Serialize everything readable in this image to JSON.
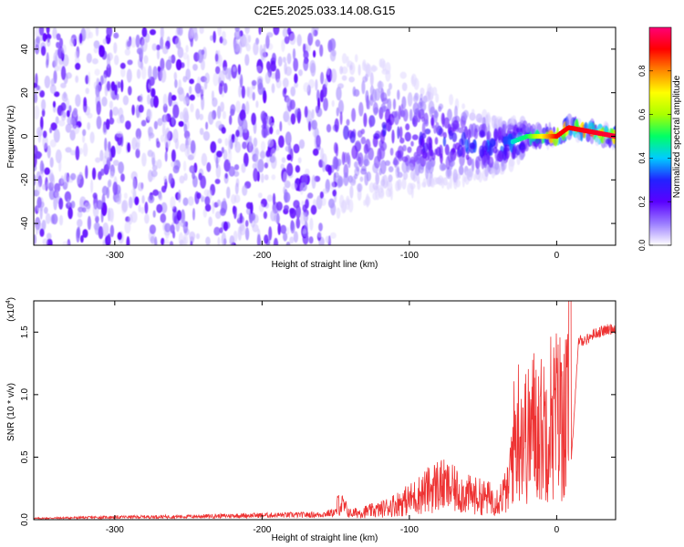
{
  "title": "C2E5.2025.033.14.08.G15",
  "chart_data": [
    {
      "type": "heatmap",
      "xlabel": "Height of straight line (km)",
      "ylabel": "Frequency (Hz)",
      "xlim": [
        -355,
        40
      ],
      "ylim": [
        -50,
        50
      ],
      "xticks": [
        -300,
        -200,
        -100,
        0
      ],
      "yticks": [
        -40,
        -20,
        0,
        20,
        40
      ],
      "colorbar": {
        "label": "Normalized spectral amplitude",
        "range": [
          0,
          1
        ],
        "ticks": [
          "0.0",
          "0.2",
          "0.4",
          "0.6",
          "0.8"
        ],
        "colormap": [
          "#ffffff",
          "#9a7cff",
          "#5a00ff",
          "#2222ff",
          "#00ccff",
          "#00ff66",
          "#aaff00",
          "#ffff00",
          "#ff8800",
          "#ff0000",
          "#ff0077"
        ]
      },
      "ridge": [
        {
          "x": -180,
          "f": 0,
          "amp": 0.2
        },
        {
          "x": -120,
          "f": 3,
          "amp": 0.25
        },
        {
          "x": -70,
          "f": -3,
          "amp": 0.3
        },
        {
          "x": -40,
          "f": -5,
          "amp": 0.35
        },
        {
          "x": -20,
          "f": 0,
          "amp": 0.5
        },
        {
          "x": 0,
          "f": 0,
          "amp": 0.9
        },
        {
          "x": 8,
          "f": 4,
          "amp": 0.9
        },
        {
          "x": 40,
          "f": 0,
          "amp": 0.95
        }
      ]
    },
    {
      "type": "line",
      "xlabel": "Height of straight line (km)",
      "ylabel": "SNR (10 * v/v)",
      "yscale_label": "(x10",
      "yscale_exp": "4",
      "xlim": [
        -355,
        40
      ],
      "ylim": [
        0,
        1.75
      ],
      "xticks": [
        -300,
        -200,
        -100,
        0
      ],
      "yticks": [
        "0.0",
        "0.5",
        "1.0",
        "1.5"
      ],
      "color": "#ee3333",
      "series": [
        {
          "x": [
            -355,
            -300,
            -250,
            -200,
            -160,
            -150,
            -148,
            -140,
            -120,
            -100,
            -80,
            -60,
            -40,
            -33,
            -30,
            -25,
            -20,
            -15,
            -10,
            -5,
            0,
            8,
            10,
            15,
            20,
            25,
            30,
            40
          ],
          "y": [
            0.01,
            0.02,
            0.025,
            0.035,
            0.04,
            0.06,
            0.18,
            0.06,
            0.1,
            0.2,
            0.35,
            0.25,
            0.2,
            0.3,
            0.9,
            1.2,
            1.0,
            1.2,
            1.1,
            1.3,
            1.3,
            1.3,
            0.5,
            1.45,
            1.45,
            1.5,
            1.52,
            1.55
          ]
        }
      ]
    }
  ]
}
